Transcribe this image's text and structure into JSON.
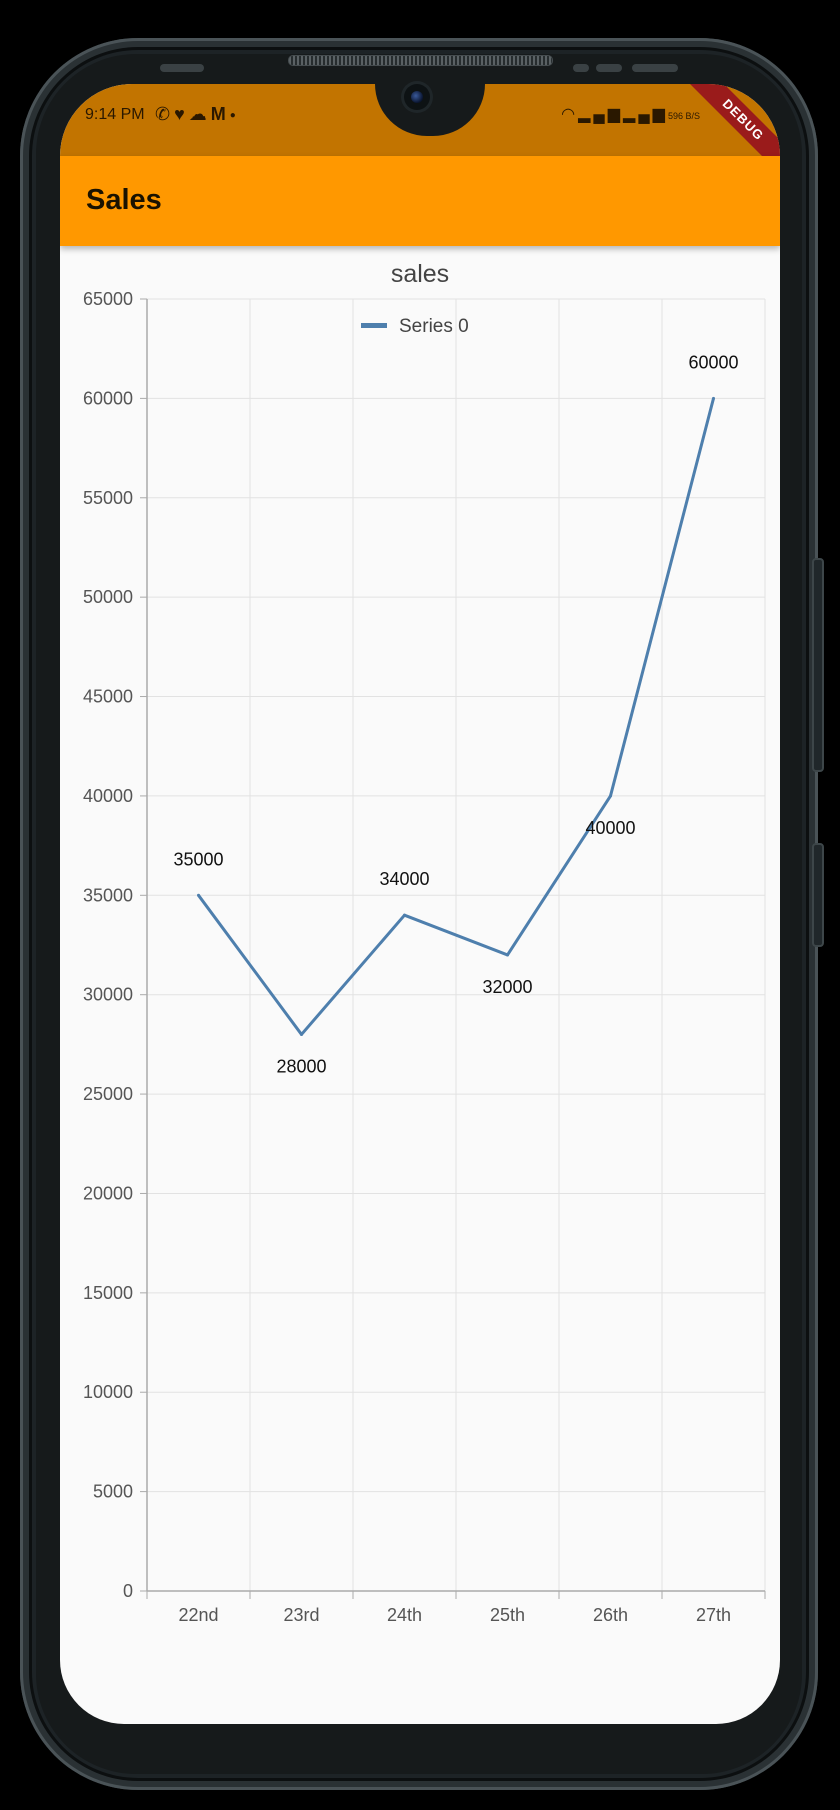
{
  "status_bar": {
    "time": "9:14 PM",
    "left_icons": [
      "whatsapp-icon",
      "heart-icon",
      "cloud-icon",
      "gmail-icon",
      "dot-icon"
    ],
    "right_icons": [
      "wifi-icon",
      "signal-icon",
      "signal-icon",
      "battery-icon"
    ],
    "net_speed": "596 B/S",
    "debug_banner": "DEBUG"
  },
  "app_bar": {
    "title": "Sales",
    "color": "#ff9800"
  },
  "chart_data": {
    "type": "line",
    "title": "sales",
    "categories": [
      "22nd",
      "23rd",
      "24th",
      "25th",
      "26th",
      "27th"
    ],
    "series": [
      {
        "name": "Series 0",
        "values": [
          35000,
          28000,
          34000,
          32000,
          40000,
          60000
        ],
        "color": "#4e7fad"
      }
    ],
    "data_labels": [
      "35000",
      "28000",
      "34000",
      "32000",
      "40000",
      "60000"
    ],
    "ylim": [
      0,
      65000
    ],
    "yticks": [
      "0",
      "5000",
      "10000",
      "15000",
      "20000",
      "25000",
      "30000",
      "35000",
      "40000",
      "45000",
      "50000",
      "55000",
      "60000",
      "65000"
    ],
    "xlabel": "",
    "ylabel": "",
    "grid": true,
    "legend": "top-center"
  }
}
